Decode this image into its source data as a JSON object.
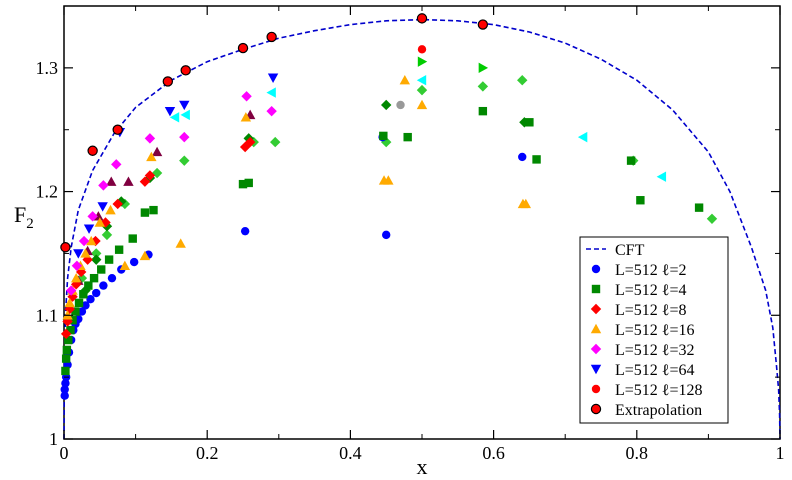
{
  "chart_data": {
    "type": "scatter",
    "title": "",
    "xlabel": "x",
    "ylabel": "F",
    "ylabel_sub": "2",
    "xlim": [
      0,
      1
    ],
    "ylim": [
      1,
      1.35
    ],
    "xticks": [
      0,
      0.2,
      0.4,
      0.6,
      0.8,
      1
    ],
    "xtick_labels": [
      "0",
      "0.2",
      "0.4",
      "0.6",
      "0.8",
      "1"
    ],
    "yticks": [
      1,
      1.1,
      1.2,
      1.3
    ],
    "ytick_labels": [
      "1",
      "1.1",
      "1.2",
      "1.3"
    ],
    "grid": false,
    "legend_position": "bottom-right",
    "cft": {
      "name": "CFT",
      "color": "#0000cc",
      "x": [
        0.0,
        0.0005,
        0.002,
        0.005,
        0.01,
        0.02,
        0.04,
        0.07,
        0.1,
        0.15,
        0.2,
        0.25,
        0.3,
        0.35,
        0.4,
        0.45,
        0.5,
        0.55,
        0.6,
        0.65,
        0.7,
        0.75,
        0.8,
        0.85,
        0.9,
        0.93,
        0.96,
        0.98,
        0.99,
        0.995,
        0.998,
        0.9995,
        1.0
      ],
      "y": [
        1.0,
        1.06,
        1.1,
        1.13,
        1.155,
        1.185,
        1.217,
        1.247,
        1.268,
        1.29,
        1.305,
        1.315,
        1.324,
        1.33,
        1.335,
        1.338,
        1.339,
        1.338,
        1.335,
        1.329,
        1.32,
        1.307,
        1.29,
        1.266,
        1.232,
        1.2,
        1.155,
        1.12,
        1.09,
        1.06,
        1.04,
        1.02,
        1.0
      ]
    },
    "series": [
      {
        "name": "L=512 ℓ=2",
        "color": "#0000ff",
        "marker": "circle",
        "x": [
          0.001,
          0.001,
          0.002,
          0.003,
          0.005,
          0.007,
          0.01,
          0.013,
          0.016,
          0.02,
          0.025,
          0.03,
          0.037,
          0.045,
          0.055,
          0.067,
          0.08,
          0.098,
          0.118,
          0.253,
          0.445,
          0.45,
          0.64
        ],
        "y": [
          1.035,
          1.04,
          1.045,
          1.05,
          1.06,
          1.07,
          1.08,
          1.088,
          1.093,
          1.097,
          1.103,
          1.108,
          1.113,
          1.118,
          1.124,
          1.13,
          1.137,
          1.143,
          1.149,
          1.168,
          1.244,
          1.165,
          1.228
        ]
      },
      {
        "name": "L=512 ℓ=4",
        "color": "#008800",
        "marker": "square",
        "x": [
          0.002,
          0.003,
          0.004,
          0.006,
          0.009,
          0.012,
          0.016,
          0.021,
          0.027,
          0.034,
          0.042,
          0.052,
          0.063,
          0.077,
          0.096,
          0.113,
          0.125,
          0.25,
          0.258,
          0.446,
          0.48,
          0.585,
          0.65,
          0.66,
          0.792,
          0.805,
          0.887
        ],
        "y": [
          1.055,
          1.065,
          1.072,
          1.08,
          1.088,
          1.096,
          1.103,
          1.11,
          1.117,
          1.124,
          1.13,
          1.137,
          1.145,
          1.153,
          1.162,
          1.183,
          1.185,
          1.206,
          1.207,
          1.245,
          1.244,
          1.265,
          1.256,
          1.226,
          1.225,
          1.193,
          1.187
        ]
      },
      {
        "name": "L=512 ℓ=8",
        "color": "#ff0000",
        "marker": "diamond",
        "x": [
          0.003,
          0.005,
          0.008,
          0.012,
          0.017,
          0.024,
          0.033,
          0.044,
          0.058,
          0.075,
          0.113,
          0.12,
          0.253,
          0.26
        ],
        "y": [
          1.085,
          1.095,
          1.105,
          1.115,
          1.125,
          1.135,
          1.145,
          1.16,
          1.175,
          1.19,
          1.208,
          1.213,
          1.236,
          1.24
        ]
      },
      {
        "name": "L=512 ℓ=16",
        "color": "#ffaa00",
        "marker": "triangle",
        "x": [
          0.005,
          0.008,
          0.012,
          0.017,
          0.023,
          0.03,
          0.038,
          0.05,
          0.065,
          0.085,
          0.113,
          0.122,
          0.163,
          0.254,
          0.447,
          0.453,
          0.476,
          0.5,
          0.641,
          0.645
        ],
        "y": [
          1.1,
          1.11,
          1.12,
          1.13,
          1.14,
          1.15,
          1.16,
          1.175,
          1.185,
          1.14,
          1.148,
          1.228,
          1.158,
          1.26,
          1.209,
          1.209,
          1.29,
          1.27,
          1.19,
          1.19
        ]
      },
      {
        "name": "L=512 ℓ=32",
        "color": "#ff00ff",
        "marker": "diamond",
        "x": [
          0.01,
          0.018,
          0.028,
          0.04,
          0.055,
          0.073,
          0.12,
          0.168,
          0.255,
          0.29
        ],
        "y": [
          1.12,
          1.14,
          1.16,
          1.18,
          1.205,
          1.222,
          1.243,
          1.244,
          1.277,
          1.265
        ]
      },
      {
        "name": "L=512 ℓ=64",
        "color": "#0000ff",
        "marker": "triangle-down",
        "x": [
          0.02,
          0.035,
          0.054,
          0.078,
          0.148,
          0.168,
          0.292
        ],
        "y": [
          1.15,
          1.17,
          1.188,
          1.248,
          1.265,
          1.27,
          1.292
        ]
      },
      {
        "name": "L=512 ℓ=128",
        "color": "#ff0000",
        "marker": "circle",
        "x": [
          0.5
        ],
        "y": [
          1.315
        ]
      },
      {
        "name": "Extrapolation",
        "color": "#000000",
        "marker": "circle",
        "x": [
          0.002,
          0.04,
          0.075,
          0.145,
          0.17,
          0.25,
          0.29,
          0.5,
          0.585
        ],
        "y": [
          1.155,
          1.233,
          1.25,
          1.289,
          1.298,
          1.316,
          1.325,
          1.34,
          1.335
        ]
      }
    ],
    "unlabeled_markers": [
      {
        "color": "#33cc33",
        "marker": "diamond",
        "x": [
          0.025,
          0.045,
          0.06,
          0.085,
          0.13,
          0.168,
          0.265,
          0.295,
          0.45,
          0.5,
          0.585,
          0.64,
          0.795,
          0.905
        ],
        "y": [
          1.13,
          1.15,
          1.165,
          1.19,
          1.215,
          1.225,
          1.24,
          1.24,
          1.24,
          1.282,
          1.285,
          1.29,
          1.225,
          1.178
        ]
      },
      {
        "color": "#00ffff",
        "marker": "triangle-left",
        "x": [
          0.155,
          0.17,
          0.29,
          0.5,
          0.725,
          0.835
        ],
        "y": [
          1.26,
          1.262,
          1.28,
          1.29,
          1.244,
          1.212
        ]
      },
      {
        "color": "#800040",
        "marker": "triangle",
        "x": [
          0.02,
          0.033,
          0.048,
          0.066,
          0.09,
          0.13,
          0.26
        ],
        "y": [
          1.128,
          1.152,
          1.18,
          1.208,
          1.208,
          1.232,
          1.262
        ]
      },
      {
        "color": "#999999",
        "marker": "circle",
        "x": [
          0.47
        ],
        "y": [
          1.27
        ]
      },
      {
        "color": "#00cc00",
        "marker": "triangle-right",
        "x": [
          0.5,
          0.585
        ],
        "y": [
          1.305,
          1.3
        ]
      },
      {
        "color": "#008800",
        "marker": "diamond",
        "x": [
          0.03,
          0.045,
          0.06,
          0.08,
          0.12,
          0.258,
          0.45,
          0.643
        ],
        "y": [
          1.12,
          1.145,
          1.172,
          1.192,
          1.211,
          1.243,
          1.27,
          1.256
        ]
      }
    ]
  }
}
